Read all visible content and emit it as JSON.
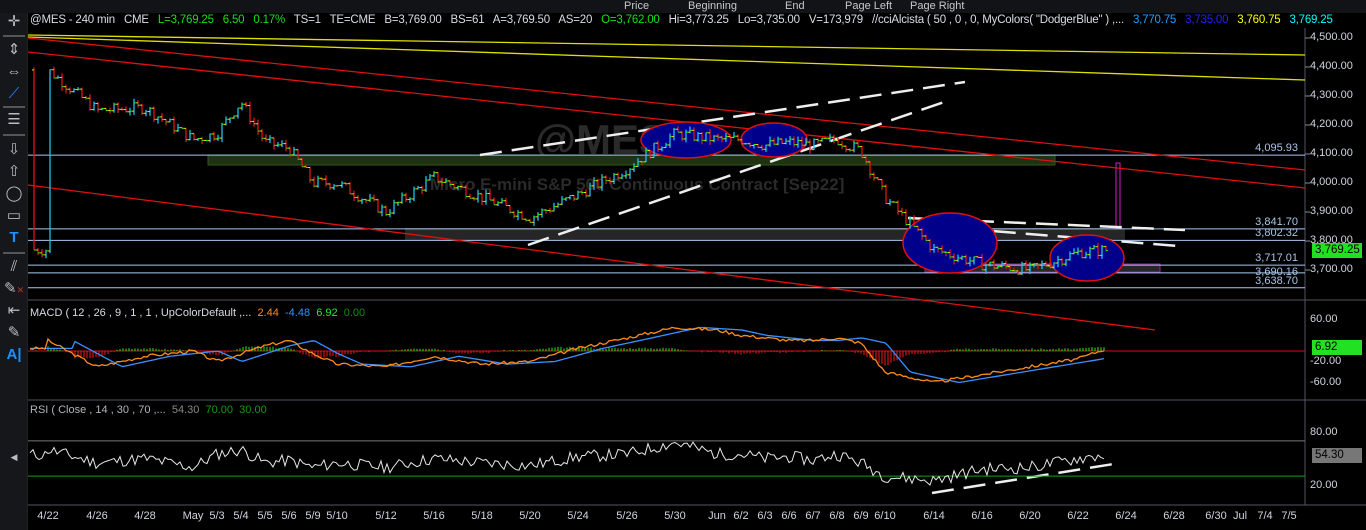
{
  "top_menu": [
    "Price",
    "Beginning",
    "End",
    "Page Left",
    "Page Right"
  ],
  "status": {
    "symbol": "@MES - 240 min",
    "exchange": "CME",
    "last": "L=3,769.25",
    "change": "6.50",
    "pct": "0.17%",
    "ts": "TS=1",
    "te": "TE=CME",
    "bid": "B=3,769.00",
    "bid_size": "BS=61",
    "ask": "A=3,769.50",
    "ask_size": "AS=20",
    "open": "O=3,762.00",
    "high": "Hi=3,773.25",
    "low": "Lo=3,735.00",
    "volume": "V=173,979",
    "indicator": "//cciAlcista ( 50 , 0 , 0, MyColors( \"DodgerBlue\" ) ,...",
    "ind_values": [
      "3,770.75",
      "3,735.00",
      "3,760.75",
      "3,769.25"
    ],
    "ind_colors": [
      "#1ea0ff",
      "#1010ff",
      "#ffff00",
      "#00ffff"
    ]
  },
  "watermark": {
    "symbol": "@MES",
    "description": "Micro E-mini S&P 500 Continuous Contract [Sep22]"
  },
  "price_axis": [
    "4,500.00",
    "4,400.00",
    "4,300.00",
    "4,200.00",
    "4,100.00",
    "4,000.00",
    "3,900.00",
    "3,800.00",
    "3,700.00"
  ],
  "last_price_tag": "3,769.25",
  "hlines": [
    "4,095.93",
    "3,841.70",
    "3,802.32",
    "3,717.01",
    "3,690.16",
    "3,638.70"
  ],
  "macd": {
    "label": "MACD ( 12 , 26 , 9 , 1 , 1 , UpColorDefault ,...",
    "values": [
      "2.44",
      "-4.48",
      "6.92",
      "0.00"
    ],
    "colors": [
      "#ff8c1a",
      "#3a8fff",
      "#22ee22",
      "#138a13"
    ],
    "axis": [
      "60.00",
      "20.00",
      "-20.00",
      "-60.00"
    ],
    "tag": "6.92"
  },
  "rsi": {
    "label": "RSI ( Close , 14 , 30 , 70 ,...",
    "values": [
      "54.30",
      "70.00",
      "30.00"
    ],
    "colors": [
      "#8a8a8a",
      "#139a13",
      "#139a13"
    ],
    "axis": [
      "80.00",
      "20.00"
    ],
    "tag": "54.30"
  },
  "dates": [
    "4/22",
    "4/26",
    "4/28",
    "May",
    "5/3",
    "5/4",
    "5/5",
    "5/6",
    "5/9",
    "5/10",
    "5/12",
    "5/16",
    "5/18",
    "5/20",
    "5/24",
    "5/26",
    "5/30",
    "Jun",
    "6/2",
    "6/3",
    "6/6",
    "6/7",
    "6/8",
    "6/9",
    "6/10",
    "6/14",
    "6/16",
    "6/20",
    "6/22",
    "6/24",
    "6/28",
    "6/30",
    "Jul",
    "7/4",
    "7/5"
  ],
  "chart_data": {
    "type": "bar",
    "title": "@MES - 240 min",
    "ylim": [
      3600,
      4520
    ],
    "categories": [
      "4/22",
      "4/26",
      "4/28",
      "May",
      "5/3",
      "5/4",
      "5/5",
      "5/6",
      "5/9",
      "5/10",
      "5/12",
      "5/16",
      "5/18",
      "5/20",
      "5/24",
      "5/26",
      "5/30",
      "Jun",
      "6/2",
      "6/3",
      "6/6",
      "6/7",
      "6/8",
      "6/9",
      "6/10",
      "6/14",
      "6/16",
      "6/20",
      "6/22",
      "6/24"
    ],
    "close_approx": [
      4390,
      4250,
      4260,
      4150,
      4170,
      4280,
      4140,
      4120,
      4000,
      4000,
      3900,
      4020,
      3950,
      3880,
      3960,
      4050,
      4170,
      4150,
      4150,
      4130,
      4140,
      4130,
      4150,
      4110,
      3950,
      3770,
      3720,
      3700,
      3760,
      3769.25
    ],
    "macd_approx": [
      20,
      -30,
      -10,
      0,
      -20,
      -5,
      10,
      20,
      -5,
      -25,
      -30,
      -10,
      -25,
      -20,
      5,
      25,
      45,
      40,
      30,
      25,
      20,
      20,
      25,
      15,
      -40,
      -60,
      -45,
      -30,
      -15,
      5
    ],
    "rsi_approx": [
      60,
      45,
      50,
      40,
      55,
      60,
      45,
      48,
      40,
      45,
      40,
      50,
      45,
      42,
      52,
      55,
      68,
      55,
      55,
      50,
      52,
      48,
      55,
      45,
      30,
      25,
      38,
      40,
      50,
      54.3
    ],
    "up_color": "#1ec0f0",
    "down_color": "#e01414"
  }
}
